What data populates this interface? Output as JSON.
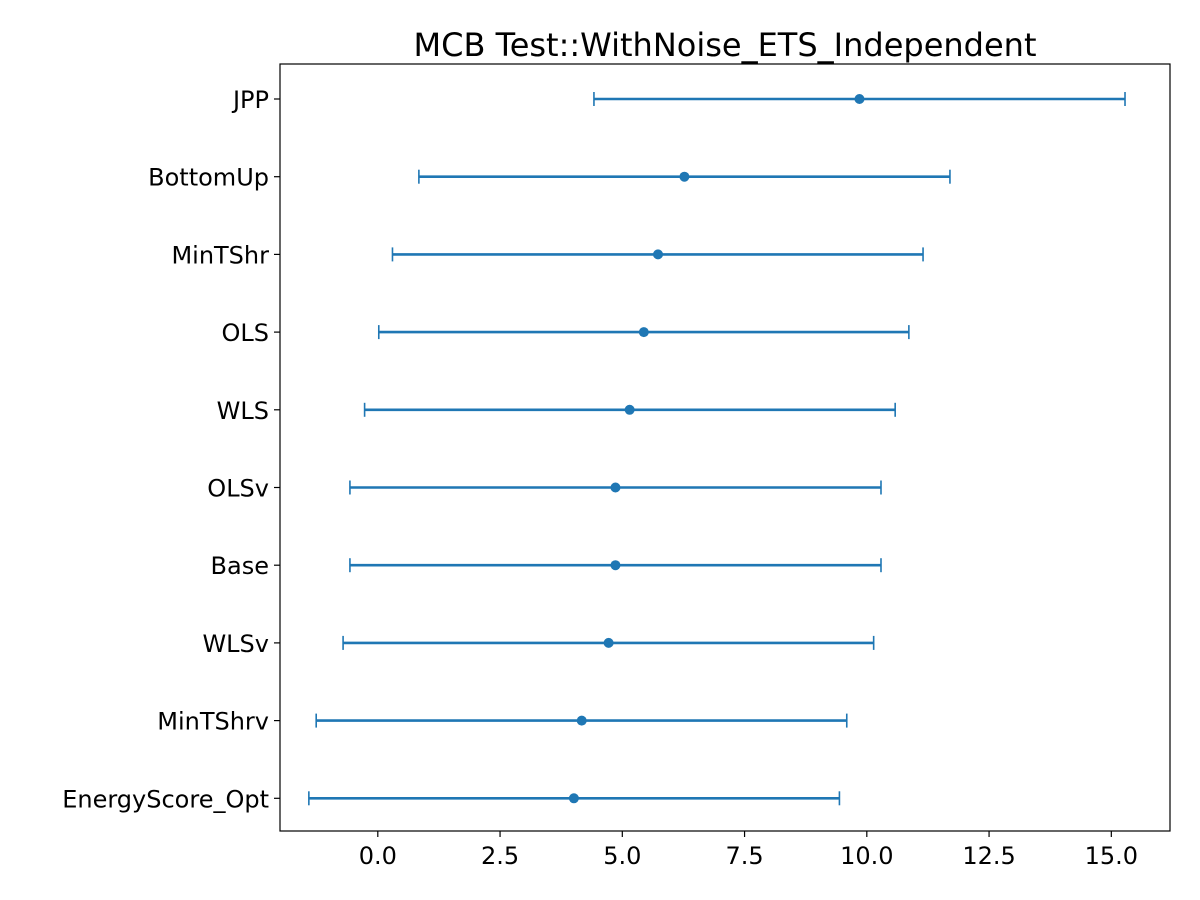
{
  "chart_data": {
    "type": "errorbar",
    "title": "MCB Test::WithNoise_ETS_Independent",
    "xlabel": "",
    "ylabel": "",
    "xlim": [
      -2.0,
      16.2
    ],
    "x_ticks": [
      0.0,
      2.5,
      5.0,
      7.5,
      10.0,
      12.5,
      15.0
    ],
    "x_tick_labels": [
      "0.0",
      "2.5",
      "5.0",
      "7.5",
      "10.0",
      "12.5",
      "15.0"
    ],
    "grid": false,
    "legend": "none",
    "color": "#1f77b4",
    "categories": [
      "JPP",
      "BottomUp",
      "MinTShr",
      "OLS",
      "WLS",
      "OLSv",
      "Base",
      "WLSv",
      "MinTShrv",
      "EnergyScore_Opt"
    ],
    "points": [
      {
        "category": "JPP",
        "value": 9.85,
        "lower": 4.42,
        "upper": 15.28
      },
      {
        "category": "BottomUp",
        "value": 6.27,
        "lower": 0.84,
        "upper": 11.7
      },
      {
        "category": "MinTShr",
        "value": 5.73,
        "lower": 0.3,
        "upper": 11.15
      },
      {
        "category": "OLS",
        "value": 5.44,
        "lower": 0.02,
        "upper": 10.86
      },
      {
        "category": "WLS",
        "value": 5.15,
        "lower": -0.27,
        "upper": 10.58
      },
      {
        "category": "OLSv",
        "value": 4.86,
        "lower": -0.57,
        "upper": 10.29
      },
      {
        "category": "Base",
        "value": 4.86,
        "lower": -0.57,
        "upper": 10.29
      },
      {
        "category": "WLSv",
        "value": 4.72,
        "lower": -0.71,
        "upper": 10.14
      },
      {
        "category": "MinTShrv",
        "value": 4.17,
        "lower": -1.26,
        "upper": 9.59
      },
      {
        "category": "EnergyScore_Opt",
        "value": 4.01,
        "lower": -1.41,
        "upper": 9.44
      }
    ]
  }
}
